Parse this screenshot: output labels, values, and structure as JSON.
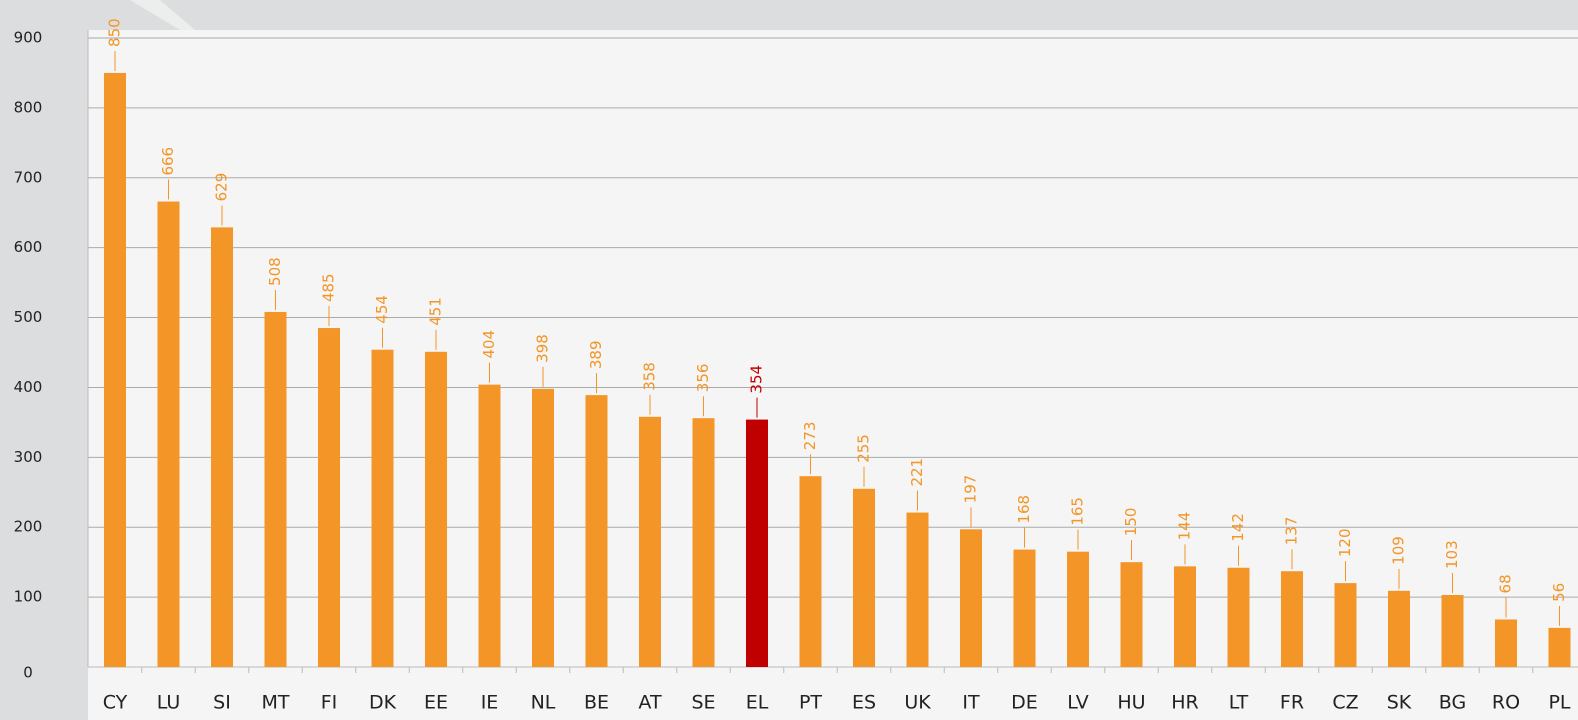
{
  "chart_data": {
    "type": "bar",
    "categories": [
      "CY",
      "LU",
      "SI",
      "MT",
      "FI",
      "DK",
      "EE",
      "IE",
      "NL",
      "BE",
      "AT",
      "SE",
      "EL",
      "PT",
      "ES",
      "UK",
      "IT",
      "DE",
      "LV",
      "HU",
      "HR",
      "LT",
      "FR",
      "CZ",
      "SK",
      "BG",
      "RO",
      "PL"
    ],
    "values": [
      850,
      666,
      629,
      508,
      485,
      454,
      451,
      404,
      398,
      389,
      358,
      356,
      354,
      273,
      255,
      221,
      197,
      168,
      165,
      150,
      144,
      142,
      137,
      120,
      109,
      103,
      68,
      56
    ],
    "colors": [
      "#f39527",
      "#f39527",
      "#f39527",
      "#f39527",
      "#f39527",
      "#f39527",
      "#f39527",
      "#f39527",
      "#f39527",
      "#f39527",
      "#f39527",
      "#f39527",
      "#c00000",
      "#f39527",
      "#f39527",
      "#f39527",
      "#f39527",
      "#f39527",
      "#f39527",
      "#f39527",
      "#f39527",
      "#f39527",
      "#f39527",
      "#f39527",
      "#f39527",
      "#f39527",
      "#f39527",
      "#f39527"
    ],
    "ylim": [
      0,
      900
    ],
    "yticks": [
      0,
      100,
      200,
      300,
      400,
      500,
      600,
      700,
      800,
      900
    ],
    "grid": true
  }
}
